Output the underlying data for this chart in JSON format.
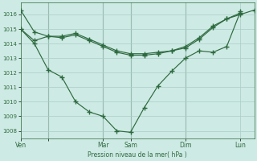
{
  "background_color": "#ceeae4",
  "grid_color": "#aaccc6",
  "line_color": "#2d6a3f",
  "title": "Pression niveau de la mer( hPa )",
  "ylim": [
    1007.5,
    1016.8
  ],
  "yticks": [
    1008,
    1009,
    1010,
    1011,
    1012,
    1013,
    1014,
    1015,
    1016
  ],
  "xtick_positions": [
    0,
    24,
    72,
    96,
    144,
    192
  ],
  "xtick_labels": [
    "Ven",
    "",
    "Mar",
    "Sam",
    "Dim",
    "Lun"
  ],
  "vlines": [
    24,
    72,
    96,
    144
  ],
  "xlim": [
    0,
    204
  ],
  "series_deep": {
    "x": [
      0,
      12,
      24,
      36,
      48,
      60,
      72,
      84,
      96,
      108,
      120,
      132,
      144,
      156,
      168,
      180,
      192
    ],
    "y": [
      1015.0,
      1014.0,
      1012.2,
      1011.7,
      1010.0,
      1009.3,
      1009.0,
      1008.0,
      1007.9,
      1009.6,
      1011.1,
      1012.1,
      1013.0,
      1013.5,
      1013.4,
      1013.8,
      1016.2
    ]
  },
  "series_flat1": {
    "x": [
      0,
      12,
      24,
      36,
      48,
      60,
      72,
      84,
      96,
      108,
      120,
      132,
      144,
      156,
      168,
      180,
      192,
      204
    ],
    "y": [
      1016.3,
      1014.8,
      1014.5,
      1014.5,
      1014.7,
      1014.3,
      1013.9,
      1013.5,
      1013.3,
      1013.3,
      1013.4,
      1013.5,
      1013.8,
      1014.4,
      1015.2,
      1015.7,
      1016.0,
      1016.3
    ]
  },
  "series_flat2": {
    "x": [
      0,
      12,
      24,
      36,
      48,
      60,
      72,
      84,
      96,
      108,
      120,
      132,
      144,
      156,
      168,
      180,
      192
    ],
    "y": [
      1015.0,
      1014.2,
      1014.5,
      1014.4,
      1014.6,
      1014.2,
      1013.8,
      1013.4,
      1013.2,
      1013.2,
      1013.3,
      1013.5,
      1013.7,
      1014.3,
      1015.1,
      1015.7,
      1016.1
    ]
  }
}
